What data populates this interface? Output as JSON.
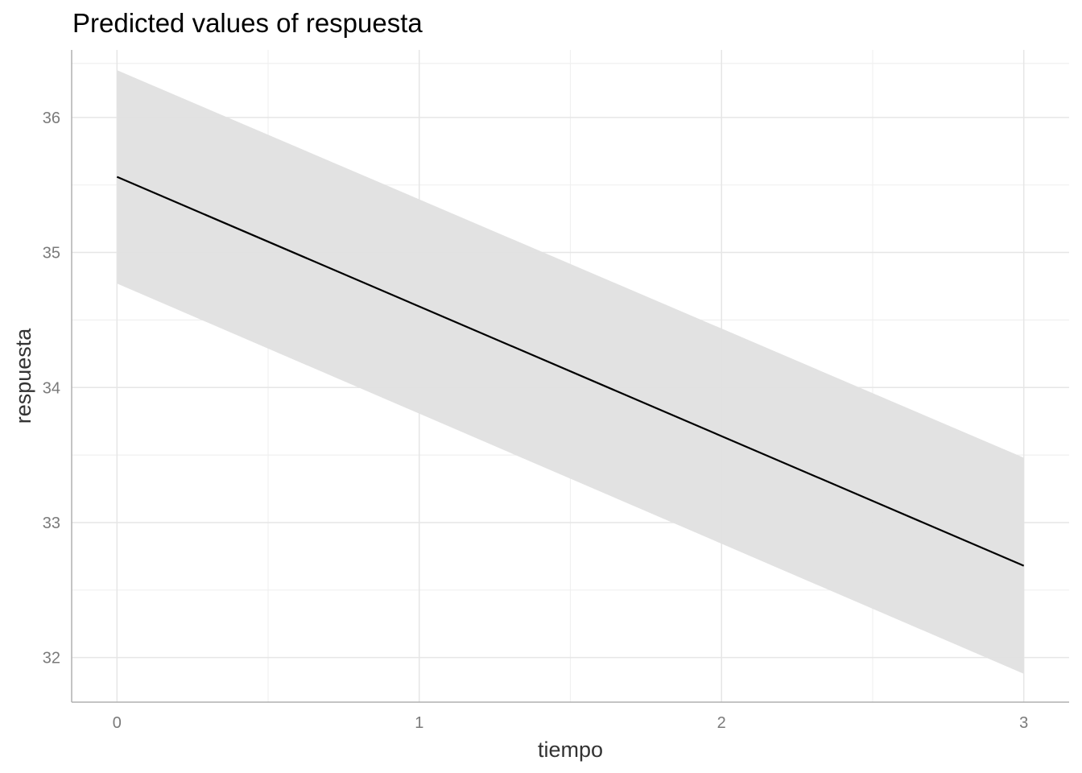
{
  "chart_data": {
    "type": "line",
    "title": "Predicted values of respuesta",
    "xlabel": "tiempo",
    "ylabel": "respuesta",
    "x_ticks": [
      0,
      1,
      2,
      3
    ],
    "y_ticks": [
      32,
      33,
      34,
      35,
      36
    ],
    "xlim": [
      -0.15,
      3.15
    ],
    "ylim": [
      31.67,
      36.5
    ],
    "grid": true,
    "legend": "none",
    "series": [
      {
        "x": [
          0,
          3
        ],
        "y": [
          35.56,
          32.68
        ],
        "ci_low": [
          34.77,
          31.88
        ],
        "ci_high": [
          36.35,
          33.48
        ],
        "line_color": "#000000",
        "band_color": "#e0e0e0"
      }
    ]
  }
}
